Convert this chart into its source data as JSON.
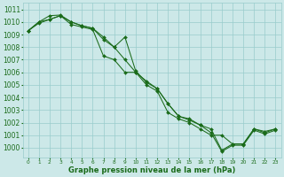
{
  "xlabel": "Graphe pression niveau de la mer (hPa)",
  "xlim": [
    -0.5,
    23.5
  ],
  "ylim": [
    999.2,
    1011.5
  ],
  "yticks": [
    1000,
    1001,
    1002,
    1003,
    1004,
    1005,
    1006,
    1007,
    1008,
    1009,
    1010,
    1011
  ],
  "xticks": [
    0,
    1,
    2,
    3,
    4,
    5,
    6,
    7,
    8,
    9,
    10,
    11,
    12,
    13,
    14,
    15,
    16,
    17,
    18,
    19,
    20,
    21,
    22,
    23
  ],
  "bg_color": "#cce8e8",
  "grid_color": "#99cccc",
  "line_color": "#1a6b1a",
  "line1": [
    1009.3,
    1010.0,
    1010.2,
    1010.5,
    1010.0,
    1009.7,
    1009.5,
    1008.8,
    1008.0,
    1008.8,
    1006.1,
    1005.2,
    1004.7,
    1003.5,
    1002.5,
    1002.2,
    1001.8,
    1001.5,
    999.8,
    1000.3,
    1000.3,
    1001.5,
    1001.2,
    1001.5
  ],
  "line2": [
    1009.3,
    1010.0,
    1010.5,
    1010.55,
    1010.0,
    1009.7,
    1009.5,
    1008.6,
    1008.0,
    1007.0,
    1006.0,
    1005.3,
    1004.7,
    1003.5,
    1002.5,
    1002.3,
    1001.8,
    1001.2,
    999.7,
    1000.2,
    1000.2,
    1001.4,
    1001.1,
    1001.4
  ],
  "line3": [
    1009.3,
    1009.9,
    1010.2,
    1010.5,
    1009.8,
    1009.6,
    1009.4,
    1007.3,
    1007.0,
    1006.0,
    1006.0,
    1005.0,
    1004.5,
    1002.8,
    1002.3,
    1002.0,
    1001.5,
    1001.0,
    1001.0,
    1000.3,
    1000.3,
    1001.5,
    1001.3,
    1001.5
  ],
  "xlabel_fontsize": 6.0,
  "ytick_fontsize": 5.5,
  "xtick_fontsize": 4.2
}
